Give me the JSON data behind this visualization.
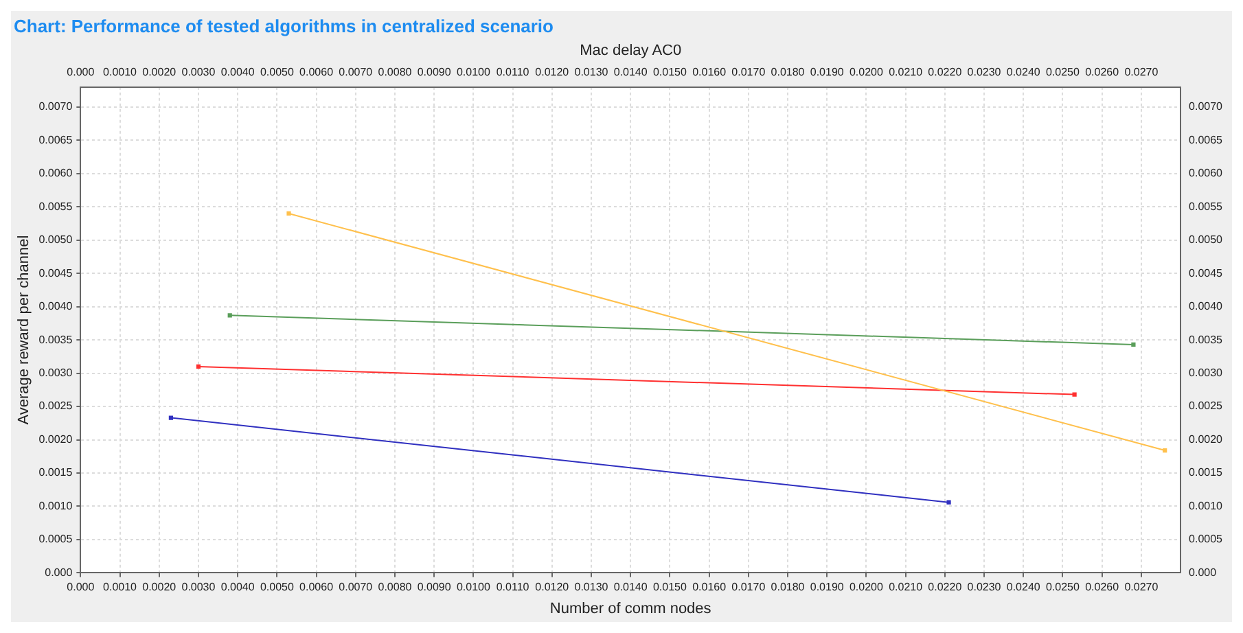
{
  "chart_data": {
    "type": "line",
    "title": "Chart: Performance of tested algorithms in centralized scenario",
    "xlabel": "Number of comm nodes",
    "ylabel": "Average reward per channel",
    "x2label": "Mac delay AC0",
    "series": [
      {
        "color": "#ffc04c",
        "x": [
          0.0053,
          0.0276
        ],
        "values": [
          0.0054,
          0.00184
        ]
      },
      {
        "color": "#5a9e5a",
        "x": [
          0.0038,
          0.0268
        ],
        "values": [
          0.00387,
          0.00343
        ]
      },
      {
        "color": "#ff3030",
        "x": [
          0.003,
          0.0253
        ],
        "values": [
          0.0031,
          0.00268
        ]
      },
      {
        "color": "#3030c0",
        "x": [
          0.0023,
          0.0221
        ],
        "values": [
          0.00233,
          0.00106
        ]
      }
    ],
    "xlim": [
      0,
      0.028
    ],
    "x2lim": [
      0,
      0.028
    ],
    "ylim": [
      0,
      0.0073
    ],
    "y2lim": [
      0,
      0.0073
    ],
    "xticks": [
      {
        "value": 0,
        "label": "0.000"
      },
      {
        "value": 0.001,
        "label": "0.0010"
      },
      {
        "value": 0.002,
        "label": "0.0020"
      },
      {
        "value": 0.003,
        "label": "0.0030"
      },
      {
        "value": 0.004,
        "label": "0.0040"
      },
      {
        "value": 0.005,
        "label": "0.0050"
      },
      {
        "value": 0.006,
        "label": "0.0060"
      },
      {
        "value": 0.007,
        "label": "0.0070"
      },
      {
        "value": 0.008,
        "label": "0.0080"
      },
      {
        "value": 0.009,
        "label": "0.0090"
      },
      {
        "value": 0.01,
        "label": "0.0100"
      },
      {
        "value": 0.011,
        "label": "0.0110"
      },
      {
        "value": 0.012,
        "label": "0.0120"
      },
      {
        "value": 0.013,
        "label": "0.0130"
      },
      {
        "value": 0.014,
        "label": "0.0140"
      },
      {
        "value": 0.015,
        "label": "0.0150"
      },
      {
        "value": 0.016,
        "label": "0.0160"
      },
      {
        "value": 0.017,
        "label": "0.0170"
      },
      {
        "value": 0.018,
        "label": "0.0180"
      },
      {
        "value": 0.019,
        "label": "0.0190"
      },
      {
        "value": 0.02,
        "label": "0.0200"
      },
      {
        "value": 0.021,
        "label": "0.0210"
      },
      {
        "value": 0.022,
        "label": "0.0220"
      },
      {
        "value": 0.023,
        "label": "0.0230"
      },
      {
        "value": 0.024,
        "label": "0.0240"
      },
      {
        "value": 0.025,
        "label": "0.0250"
      },
      {
        "value": 0.026,
        "label": "0.0260"
      },
      {
        "value": 0.027,
        "label": "0.0270"
      }
    ],
    "x2ticks": [
      {
        "value": 0,
        "label": "0.000"
      },
      {
        "value": 0.001,
        "label": "0.0010"
      },
      {
        "value": 0.002,
        "label": "0.0020"
      },
      {
        "value": 0.003,
        "label": "0.0030"
      },
      {
        "value": 0.004,
        "label": "0.0040"
      },
      {
        "value": 0.005,
        "label": "0.0050"
      },
      {
        "value": 0.006,
        "label": "0.0060"
      },
      {
        "value": 0.007,
        "label": "0.0070"
      },
      {
        "value": 0.008,
        "label": "0.0080"
      },
      {
        "value": 0.009,
        "label": "0.0090"
      },
      {
        "value": 0.01,
        "label": "0.0100"
      },
      {
        "value": 0.011,
        "label": "0.0110"
      },
      {
        "value": 0.012,
        "label": "0.0120"
      },
      {
        "value": 0.013,
        "label": "0.0130"
      },
      {
        "value": 0.014,
        "label": "0.0140"
      },
      {
        "value": 0.015,
        "label": "0.0150"
      },
      {
        "value": 0.016,
        "label": "0.0160"
      },
      {
        "value": 0.017,
        "label": "0.0170"
      },
      {
        "value": 0.018,
        "label": "0.0180"
      },
      {
        "value": 0.019,
        "label": "0.0190"
      },
      {
        "value": 0.02,
        "label": "0.0200"
      },
      {
        "value": 0.021,
        "label": "0.0210"
      },
      {
        "value": 0.022,
        "label": "0.0220"
      },
      {
        "value": 0.023,
        "label": "0.0230"
      },
      {
        "value": 0.024,
        "label": "0.0240"
      },
      {
        "value": 0.025,
        "label": "0.0250"
      },
      {
        "value": 0.026,
        "label": "0.0260"
      },
      {
        "value": 0.027,
        "label": "0.0270"
      }
    ],
    "yticks": [
      {
        "value": 0,
        "label": "0.000"
      },
      0.0005,
      {
        "value": 0.001,
        "label": "0.0010"
      },
      0.0015,
      {
        "value": 0.002,
        "label": "0.0020"
      },
      0.0025,
      {
        "value": 0.003,
        "label": "0.0030"
      },
      0.0035,
      {
        "value": 0.004,
        "label": "0.0040"
      },
      0.0045,
      {
        "value": 0.005,
        "label": "0.0050"
      },
      0.0055,
      {
        "value": 0.006,
        "label": "0.0060"
      },
      0.0065,
      {
        "value": 0.007,
        "label": "0.0070"
      }
    ],
    "y2ticks": [
      {
        "value": 0,
        "label": "0.000"
      },
      0.0005,
      {
        "value": 0.001,
        "label": "0.0010"
      },
      0.0015,
      {
        "value": 0.002,
        "label": "0.0020"
      },
      0.0025,
      {
        "value": 0.003,
        "label": "0.0030"
      },
      0.0035,
      {
        "value": 0.004,
        "label": "0.0040"
      },
      0.0045,
      {
        "value": 0.005,
        "label": "0.0050"
      },
      0.0055,
      {
        "value": 0.006,
        "label": "0.0060"
      },
      0.0065,
      {
        "value": 0.007,
        "label": "0.0070"
      }
    ],
    "grid": true,
    "legend": false,
    "marker": "square",
    "line_style": "solid"
  }
}
